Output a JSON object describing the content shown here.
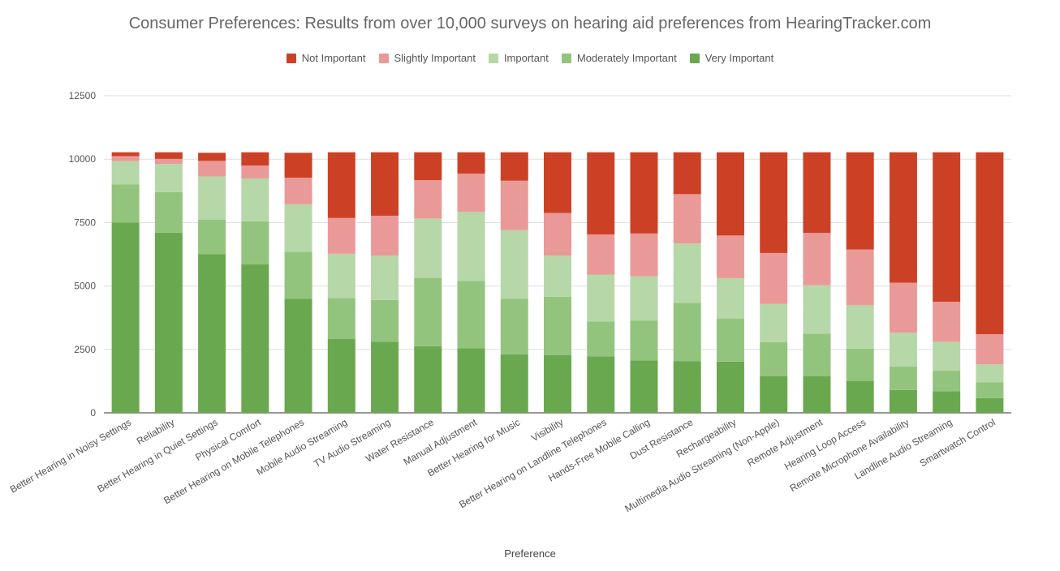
{
  "chart_data": {
    "type": "bar",
    "stacked": true,
    "title": "Consumer Preferences: Results from over 10,000 surveys on hearing aid preferences from HearingTracker.com",
    "xlabel": "Preference",
    "ylabel": "",
    "ylim": [
      0,
      12500
    ],
    "yticks": [
      "0",
      "2500",
      "5000",
      "7500",
      "10000",
      "12500"
    ],
    "grid": true,
    "legend_position": "top",
    "categories": [
      "Better Hearing in Noisy Settings",
      "Reliability",
      "Better Hearing in Quiet Settings",
      "Physical Comfort",
      "Better Hearing on Mobile Telephones",
      "Mobile Audio Streaming",
      "TV Audio Streaming",
      "Water Resistance",
      "Manual Adjustment",
      "Better Hearing for Music",
      "Visibility",
      "Better Hearing on Landline Telephones",
      "Hands-Free Mobile Calling",
      "Dust Resistance",
      "Rechargeability",
      "Multimedia Audio Streaming (Non-Apple)",
      "Remote Adjustment",
      "Hearing Loop Access",
      "Remote Microphone Availability",
      "Landline Audio Streaming",
      "Smartwatch Control"
    ],
    "series": [
      {
        "name": "Very Important",
        "color": "#6aa84f",
        "values": [
          7500,
          7100,
          6250,
          5850,
          4500,
          2920,
          2800,
          2620,
          2550,
          2300,
          2280,
          2230,
          2070,
          2030,
          2020,
          1450,
          1450,
          1260,
          900,
          850,
          580
        ]
      },
      {
        "name": "Moderately Important",
        "color": "#93c47d",
        "values": [
          1500,
          1600,
          1370,
          1700,
          1850,
          1600,
          1650,
          2700,
          2650,
          2200,
          2300,
          1370,
          1570,
          2300,
          1700,
          1330,
          1670,
          1270,
          930,
          810,
          620
        ]
      },
      {
        "name": "Important",
        "color": "#b6d7a8",
        "values": [
          920,
          1110,
          1700,
          1690,
          1870,
          1750,
          1750,
          2340,
          2720,
          2700,
          1620,
          1850,
          1740,
          2350,
          1590,
          1510,
          1910,
          1710,
          1330,
          1140,
          710
        ]
      },
      {
        "name": "Slightly Important",
        "color": "#ea9999",
        "values": [
          200,
          200,
          610,
          510,
          1050,
          1410,
          1570,
          1510,
          1510,
          1950,
          1680,
          1580,
          1690,
          1940,
          1680,
          2010,
          2060,
          2200,
          1970,
          1580,
          1190
        ]
      },
      {
        "name": "Not Important",
        "color": "#cc4125",
        "values": [
          150,
          260,
          320,
          520,
          980,
          2590,
          2500,
          1100,
          840,
          1120,
          2390,
          3240,
          3200,
          1650,
          3280,
          3970,
          3180,
          3830,
          5140,
          5890,
          7170
        ]
      }
    ],
    "legend_order": [
      "Not Important",
      "Slightly Important",
      "Important",
      "Moderately Important",
      "Very Important"
    ]
  }
}
